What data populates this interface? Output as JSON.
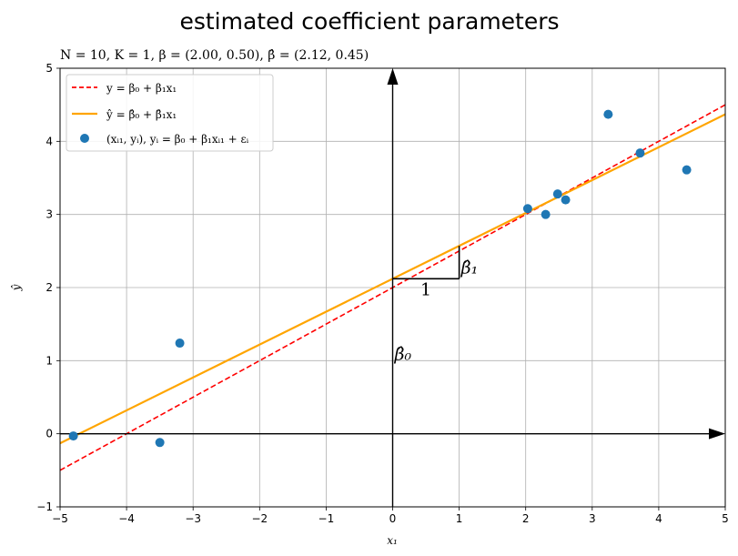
{
  "chart_data": {
    "type": "scatter",
    "title": "estimated coefficient parameters",
    "subtitle": "N = 10, K = 1, β = (2.00, 0.50), β̂ = (2.12, 0.45)",
    "xlabel": "x₁",
    "ylabel": "ŷ",
    "xlim": [
      -5,
      5
    ],
    "ylim": [
      -1,
      5
    ],
    "x_ticks": [
      -5,
      -4,
      -3,
      -2,
      -1,
      0,
      1,
      2,
      3,
      4,
      5
    ],
    "y_ticks": [
      -1,
      0,
      1,
      2,
      3,
      4,
      5
    ],
    "x_tick_labels": [
      "−5",
      "−4",
      "−3",
      "−2",
      "−1",
      "0",
      "1",
      "2",
      "3",
      "4",
      "5"
    ],
    "y_tick_labels": [
      "−1",
      "0",
      "1",
      "2",
      "3",
      "4",
      "5"
    ],
    "grid": true,
    "legend_position": "upper-left",
    "true_line": {
      "intercept": 2.0,
      "slope": 0.5,
      "color": "#ff0000",
      "style": "dashed"
    },
    "fitted_line": {
      "intercept": 2.12,
      "slope": 0.45,
      "color": "#ffa500",
      "style": "solid"
    },
    "points_color": "#1f77b4",
    "points": [
      {
        "x": -4.8,
        "y": -0.03
      },
      {
        "x": -3.5,
        "y": -0.12
      },
      {
        "x": -3.2,
        "y": 1.24
      },
      {
        "x": 2.03,
        "y": 3.08
      },
      {
        "x": 2.3,
        "y": 3.0
      },
      {
        "x": 2.48,
        "y": 3.28
      },
      {
        "x": 2.6,
        "y": 3.2
      },
      {
        "x": 3.24,
        "y": 4.37
      },
      {
        "x": 3.72,
        "y": 3.84
      },
      {
        "x": 4.42,
        "y": 3.61
      }
    ],
    "legend": [
      {
        "key": "true",
        "label": "y = β₀ + β₁x₁"
      },
      {
        "key": "fitted",
        "label": "ŷ = β̂₀ + β̂₁x₁"
      },
      {
        "key": "points",
        "label": "(xᵢ₁, yᵢ), yᵢ = β₀ + β₁xᵢ₁ + εᵢ"
      }
    ],
    "annotations": {
      "beta0_label": "β̂₀",
      "beta1_label": "β̂₁",
      "run_label": "1"
    }
  }
}
